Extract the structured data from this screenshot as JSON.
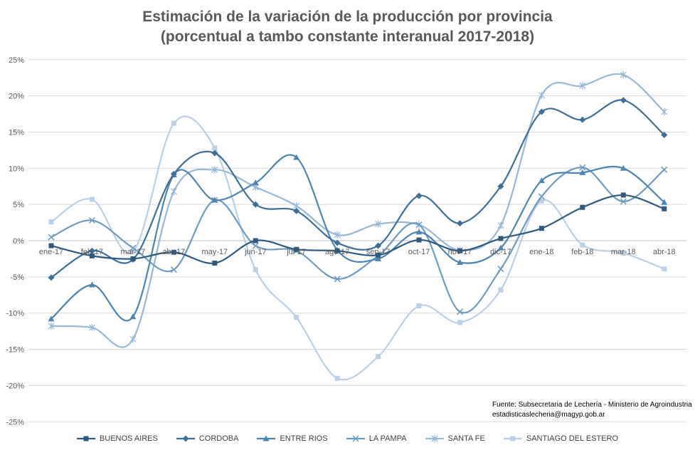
{
  "chart_data": {
    "type": "line",
    "title": [
      "Estimación de la variación de la producción por provincia",
      "(porcentual a tambo constante interanual 2017-2018)"
    ],
    "categories": [
      "ene-17",
      "feb-17",
      "mar-17",
      "abr-17",
      "may-17",
      "jun-17",
      "jul-17",
      "ago-17",
      "sep-17",
      "oct-17",
      "nov-17",
      "dic-17",
      "ene-18",
      "feb-18",
      "mar-18",
      "abr-18"
    ],
    "y_ticks": [
      "25%",
      "20%",
      "15%",
      "10%",
      "5%",
      "0%",
      "-5%",
      "-10%",
      "-15%",
      "-20%",
      "-25%"
    ],
    "ylim": [
      -25,
      25
    ],
    "grid": true,
    "legend_position": "bottom",
    "series": [
      {
        "name": "BUENOS AIRES",
        "marker": "square",
        "color": "#2e5a7e",
        "values": [
          -0.7,
          -2.1,
          -2.5,
          -1.6,
          -3.1,
          0.0,
          -1.2,
          -1.4,
          -2.0,
          0.1,
          -1.4,
          0.3,
          1.7,
          4.6,
          6.3,
          4.4
        ]
      },
      {
        "name": "CORDOBA",
        "marker": "diamond",
        "color": "#3d6f99",
        "values": [
          -5.1,
          -1.4,
          -2.6,
          9.2,
          12.1,
          5.0,
          4.1,
          -0.3,
          -0.7,
          6.2,
          2.4,
          7.5,
          17.8,
          16.7,
          19.4,
          14.6
        ]
      },
      {
        "name": "ENTRE RIOS",
        "marker": "triangle",
        "color": "#4d84b0",
        "values": [
          -10.8,
          -6.1,
          -10.5,
          9.1,
          5.6,
          8.0,
          11.5,
          -1.3,
          -2.5,
          1.2,
          -3.0,
          -1.0,
          8.3,
          9.4,
          10.0,
          5.3
        ]
      },
      {
        "name": "LA PAMPA",
        "marker": "x",
        "color": "#6d9bc2",
        "values": [
          0.5,
          2.8,
          -1.0,
          -4.0,
          5.6,
          -0.7,
          -1.4,
          -5.3,
          -2.1,
          2.2,
          -9.8,
          -3.9,
          6.1,
          10.1,
          5.4,
          9.8
        ]
      },
      {
        "name": "SANTA FE",
        "marker": "star",
        "color": "#97b8d6",
        "values": [
          -11.8,
          -12.0,
          -13.6,
          6.8,
          9.8,
          7.4,
          4.8,
          0.8,
          2.3,
          2.2,
          -1.3,
          2.1,
          20.1,
          21.4,
          22.9,
          17.8
        ]
      },
      {
        "name": "SANTIAGO DEL ESTERO",
        "marker": "square",
        "color": "#bcd0e5",
        "values": [
          2.6,
          5.7,
          -1.5,
          16.2,
          12.8,
          -4.0,
          -10.6,
          -19.0,
          -16.0,
          -9.0,
          -11.3,
          -6.8,
          5.5,
          -0.6,
          -1.7,
          -3.9
        ]
      }
    ]
  },
  "source_lines": [
    "Fuente: Subsecretaria de Lechería - Ministerio de Agroindustria",
    "estadisticaslecheria@magyp.gob.ar"
  ]
}
